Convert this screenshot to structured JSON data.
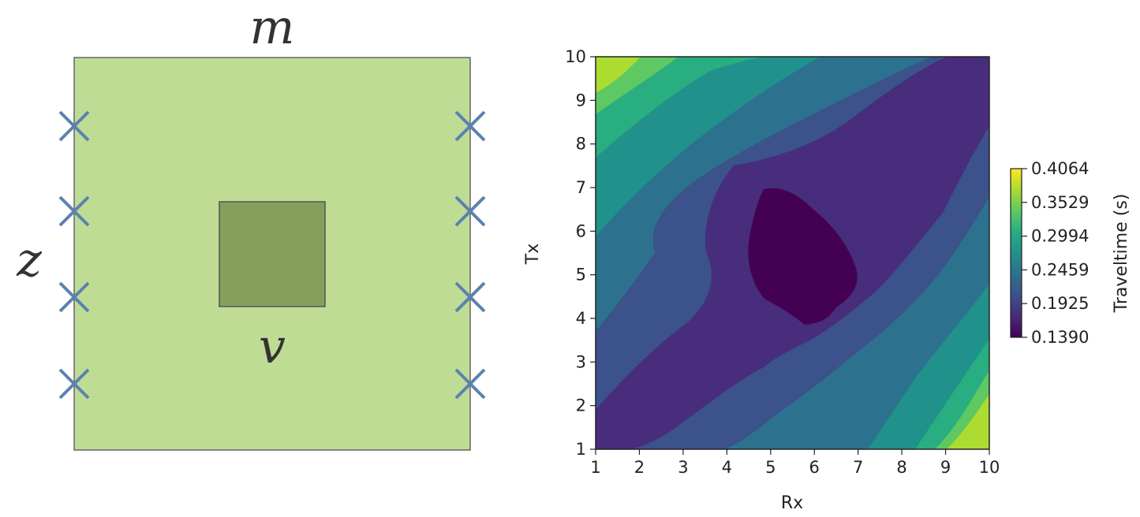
{
  "diagram": {
    "top_label": "m",
    "left_label": "z",
    "anomaly_label": "v",
    "colors": {
      "background_medium": "#bfdc95",
      "anomaly": "#84a05a",
      "border": "#666666",
      "receiver_marker": "#5b82ad"
    },
    "marker_icon": "cross-icon",
    "left_markers": 4,
    "right_markers": 4
  },
  "chart_data": {
    "type": "contourf",
    "xlabel": "Rx",
    "ylabel": "Tx",
    "xlim": [
      1,
      10
    ],
    "ylim": [
      1,
      10
    ],
    "xticks": [
      "1",
      "2",
      "3",
      "4",
      "5",
      "6",
      "7",
      "8",
      "9",
      "10"
    ],
    "yticks": [
      "1",
      "2",
      "3",
      "4",
      "5",
      "6",
      "7",
      "8",
      "9",
      "10"
    ],
    "colorbar": {
      "label": "Traveltime (s)",
      "ticks": [
        "0.4064",
        "0.3529",
        "0.2994",
        "0.2459",
        "0.1925",
        "0.1390"
      ],
      "min": 0.139,
      "max": 0.4064
    },
    "colormap": [
      "#440154",
      "#472d7b",
      "#3b528b",
      "#2c728e",
      "#21918c",
      "#28ae80",
      "#5ec962",
      "#addc30",
      "#fde725"
    ],
    "levels": [
      0.139,
      0.1724,
      0.2059,
      0.2393,
      0.2727,
      0.3062,
      0.3396,
      0.373,
      0.4064
    ]
  }
}
